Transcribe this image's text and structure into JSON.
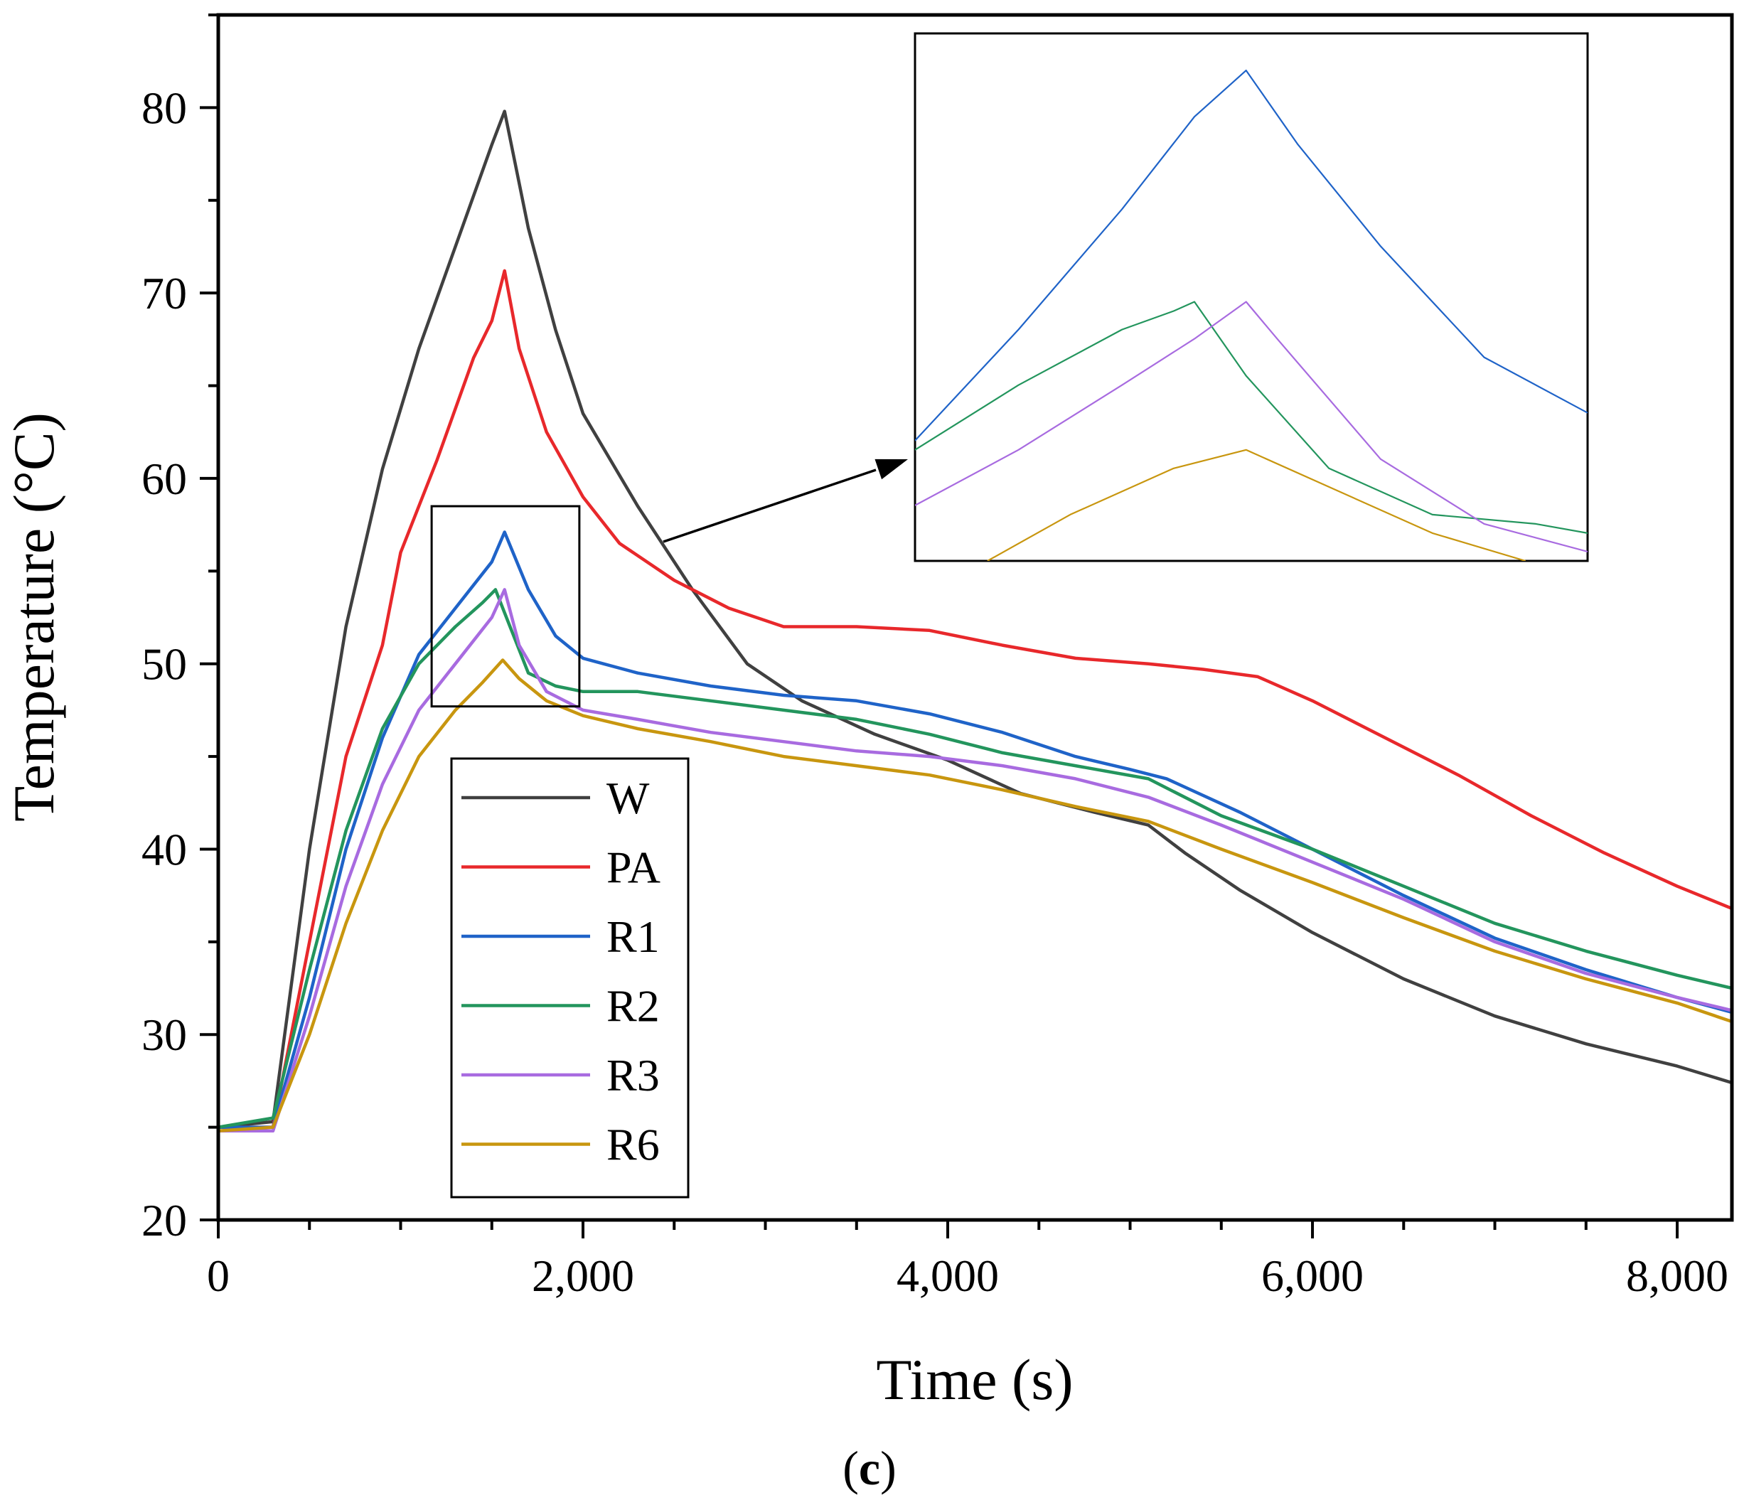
{
  "chart_data": {
    "type": "line",
    "title": "",
    "xlabel": "Time (s)",
    "ylabel": "Temperature (°C)",
    "xlim": [
      0,
      8300
    ],
    "ylim": [
      20,
      85
    ],
    "x_ticks": [
      0,
      2000,
      4000,
      6000,
      8000
    ],
    "x_tick_labels": [
      "0",
      "2,000",
      "4,000",
      "6,000",
      "8,000"
    ],
    "y_ticks": [
      20,
      30,
      40,
      50,
      60,
      70,
      80
    ],
    "y_tick_labels": [
      "20",
      "30",
      "40",
      "50",
      "60",
      "70",
      "80"
    ],
    "grid": false,
    "legend_position": "lower-left inside",
    "caption": "(c)",
    "caption_letter": "c",
    "series": [
      {
        "name": "W",
        "color": "#404040",
        "x": [
          0,
          300,
          500,
          700,
          900,
          1100,
          1300,
          1500,
          1570,
          1700,
          1850,
          2000,
          2300,
          2600,
          2900,
          3200,
          3600,
          4000,
          4400,
          4800,
          5100,
          5300,
          5600,
          6000,
          6500,
          7000,
          7500,
          8000,
          8300
        ],
        "y": [
          25.0,
          25.3,
          40.0,
          52.0,
          60.5,
          67.0,
          72.5,
          78.0,
          79.8,
          73.5,
          68.0,
          63.5,
          58.5,
          54.0,
          50.0,
          48.0,
          46.2,
          44.8,
          43.0,
          42.0,
          41.3,
          39.8,
          37.8,
          35.5,
          33.0,
          31.0,
          29.5,
          28.3,
          27.4
        ]
      },
      {
        "name": "PA",
        "color": "#e8282b",
        "x": [
          0,
          300,
          500,
          700,
          900,
          1000,
          1200,
          1400,
          1500,
          1570,
          1650,
          1800,
          2000,
          2200,
          2500,
          2800,
          3100,
          3500,
          3900,
          4300,
          4700,
          5100,
          5400,
          5700,
          6000,
          6400,
          6800,
          7200,
          7600,
          8000,
          8300
        ],
        "y": [
          25.0,
          25.0,
          35.0,
          45.0,
          51.0,
          56.0,
          61.0,
          66.5,
          68.5,
          71.2,
          67.0,
          62.5,
          59.0,
          56.5,
          54.5,
          53.0,
          52.0,
          52.0,
          51.8,
          51.0,
          50.3,
          50.0,
          49.7,
          49.3,
          48.0,
          46.0,
          44.0,
          41.8,
          39.8,
          38.0,
          36.8
        ]
      },
      {
        "name": "R1",
        "color": "#1f63c8",
        "x": [
          0,
          300,
          500,
          700,
          900,
          1100,
          1300,
          1500,
          1570,
          1700,
          1850,
          2000,
          2300,
          2700,
          3100,
          3500,
          3900,
          4300,
          4700,
          5000,
          5200,
          5600,
          6000,
          6500,
          7000,
          7500,
          8000,
          8300
        ],
        "y": [
          25.0,
          25.0,
          32.0,
          40.0,
          46.0,
          50.5,
          53.0,
          55.5,
          57.1,
          54.0,
          51.5,
          50.3,
          49.5,
          48.8,
          48.3,
          48.0,
          47.3,
          46.3,
          45.0,
          44.3,
          43.8,
          42.0,
          40.0,
          37.5,
          35.2,
          33.5,
          32.0,
          31.2
        ]
      },
      {
        "name": "R2",
        "color": "#23955d",
        "x": [
          0,
          300,
          500,
          700,
          900,
          1100,
          1300,
          1450,
          1520,
          1600,
          1700,
          1850,
          2000,
          2300,
          2700,
          3100,
          3500,
          3900,
          4300,
          4700,
          5100,
          5500,
          6000,
          6500,
          7000,
          7500,
          8000,
          8300
        ],
        "y": [
          25.0,
          25.5,
          33.5,
          41.0,
          46.5,
          50.0,
          52.0,
          53.3,
          54.0,
          52.0,
          49.5,
          48.8,
          48.5,
          48.5,
          48.0,
          47.5,
          47.0,
          46.2,
          45.2,
          44.5,
          43.8,
          41.8,
          40.0,
          38.0,
          36.0,
          34.5,
          33.2,
          32.5
        ]
      },
      {
        "name": "R3",
        "color": "#a86be0",
        "x": [
          0,
          300,
          500,
          700,
          900,
          1100,
          1300,
          1500,
          1570,
          1650,
          1800,
          2000,
          2300,
          2700,
          3100,
          3500,
          3900,
          4300,
          4700,
          5100,
          5500,
          6000,
          6500,
          7000,
          7500,
          8000,
          8300
        ],
        "y": [
          24.8,
          24.8,
          31.0,
          38.0,
          43.5,
          47.5,
          50.0,
          52.5,
          54.0,
          51.0,
          48.5,
          47.5,
          47.0,
          46.3,
          45.8,
          45.3,
          45.0,
          44.5,
          43.8,
          42.8,
          41.3,
          39.3,
          37.3,
          35.0,
          33.3,
          32.0,
          31.3
        ]
      },
      {
        "name": "R6",
        "color": "#c8960f",
        "x": [
          0,
          300,
          500,
          700,
          900,
          1100,
          1300,
          1450,
          1560,
          1650,
          1800,
          2000,
          2300,
          2700,
          3100,
          3500,
          3900,
          4300,
          4700,
          5100,
          5500,
          6000,
          6500,
          7000,
          7500,
          8000,
          8300
        ],
        "y": [
          24.8,
          25.0,
          30.0,
          36.0,
          41.0,
          45.0,
          47.5,
          49.0,
          50.2,
          49.2,
          48.0,
          47.2,
          46.5,
          45.8,
          45.0,
          44.5,
          44.0,
          43.2,
          42.3,
          41.5,
          40.0,
          38.2,
          36.3,
          34.5,
          33.0,
          31.7,
          30.7
        ]
      }
    ],
    "inset": {
      "source_region": {
        "x": [
          1170,
          1980
        ],
        "y": [
          47.7,
          58.5
        ]
      },
      "window": {
        "x": [
          1250,
          1900
        ],
        "y": [
          51.8,
          57.5
        ]
      },
      "series": [
        {
          "name": "R1",
          "color": "#1f63c8",
          "x": [
            1250,
            1350,
            1450,
            1520,
            1570,
            1620,
            1700,
            1800,
            1900
          ],
          "y": [
            53.1,
            54.3,
            55.6,
            56.6,
            57.1,
            56.3,
            55.2,
            54.0,
            53.4
          ]
        },
        {
          "name": "R2",
          "color": "#23955d",
          "x": [
            1250,
            1350,
            1450,
            1500,
            1520,
            1570,
            1650,
            1750,
            1850,
            1900
          ],
          "y": [
            53.0,
            53.7,
            54.3,
            54.5,
            54.6,
            53.8,
            52.8,
            52.3,
            52.2,
            52.1
          ]
        },
        {
          "name": "R3",
          "color": "#a86be0",
          "x": [
            1250,
            1350,
            1450,
            1520,
            1570,
            1600,
            1700,
            1800,
            1900
          ],
          "y": [
            52.4,
            53.0,
            53.7,
            54.2,
            54.6,
            54.2,
            52.9,
            52.2,
            51.9
          ]
        },
        {
          "name": "R6",
          "color": "#c8960f",
          "x": [
            1320,
            1400,
            1500,
            1570,
            1650,
            1750,
            1840
          ],
          "y": [
            51.8,
            52.3,
            52.8,
            53.0,
            52.6,
            52.1,
            51.8
          ]
        }
      ]
    }
  }
}
